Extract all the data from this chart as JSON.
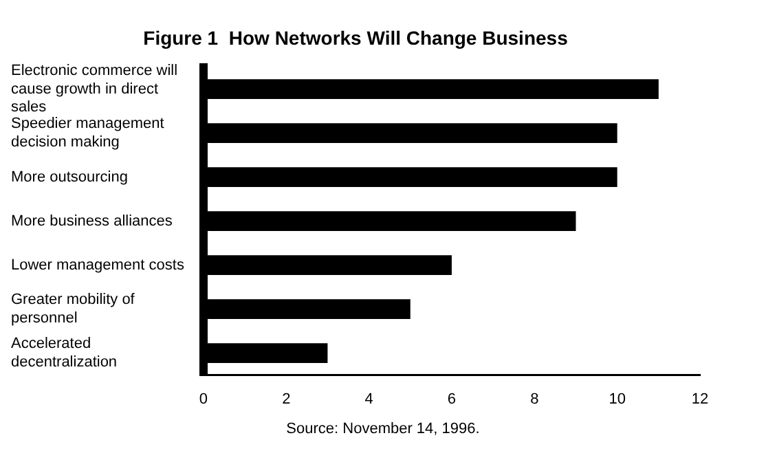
{
  "chart_data": {
    "type": "bar",
    "orientation": "horizontal",
    "title": "Figure 1  How Networks Will Change Business",
    "categories": [
      "Electronic commerce will cause growth in direct sales",
      "Speedier management decision making",
      "More outsourcing",
      "More business alliances",
      "Lower management costs",
      "Greater mobility of personnel",
      "Accelerated decentralization"
    ],
    "values": [
      11,
      10,
      10,
      9,
      6,
      5,
      3
    ],
    "color": "#000000",
    "xlim": [
      0,
      12
    ],
    "xticks": [
      0,
      2,
      4,
      6,
      8,
      10,
      12
    ],
    "grid": false,
    "legend": false,
    "annotations": [
      "Source: November 14, 1996."
    ]
  }
}
